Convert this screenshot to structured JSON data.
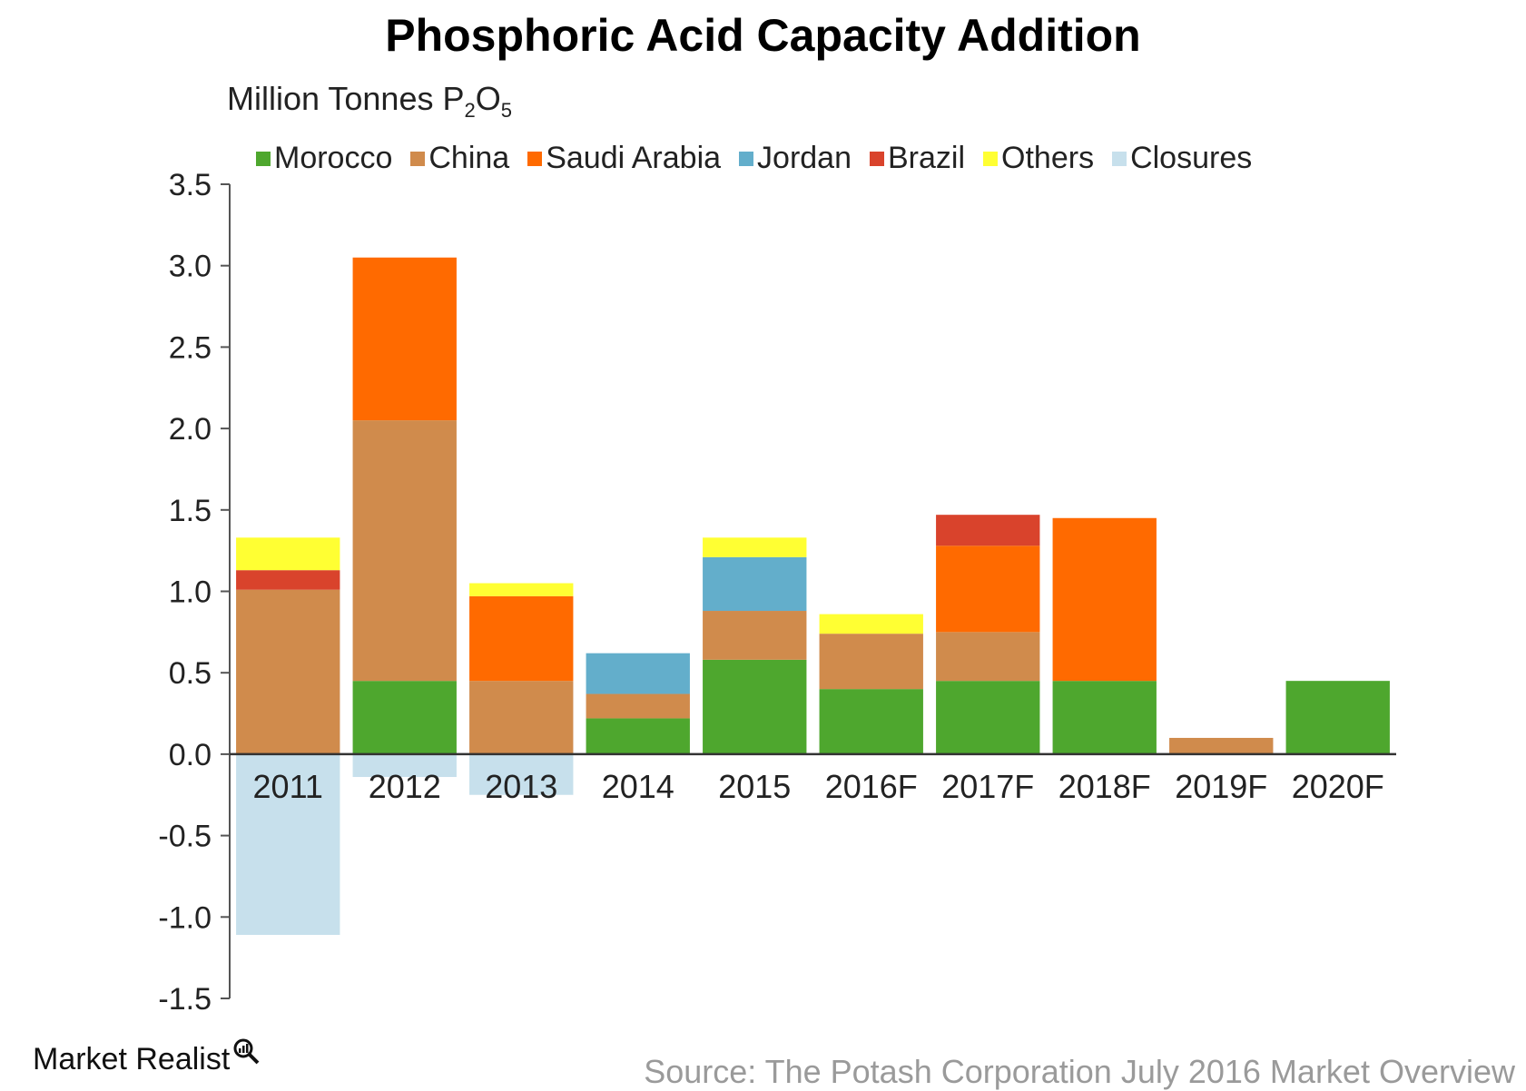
{
  "chart_data": {
    "type": "bar",
    "stacked": true,
    "title": "Phosphoric Acid Capacity Addition",
    "ylabel_main": "Million Tonnes P",
    "ylabel_sub1": "2",
    "ylabel_mid": "O",
    "ylabel_sub2": "5",
    "categories": [
      "2011",
      "2012",
      "2013",
      "2014",
      "2015",
      "2016F",
      "2017F",
      "2018F",
      "2019F",
      "2020F"
    ],
    "ylim": [
      -1.5,
      3.5
    ],
    "yticks": [
      "3.5",
      "3.0",
      "2.5",
      "2.0",
      "1.5",
      "1.0",
      "0.5",
      "0.0",
      "-0.5",
      "-1.0",
      "-1.5"
    ],
    "grid": false,
    "legend_position": "top",
    "series": [
      {
        "name": "Morocco",
        "color": "#4ea72e",
        "values": [
          0,
          0.45,
          0,
          0.22,
          0.58,
          0.4,
          0.45,
          0.45,
          0,
          0.45
        ]
      },
      {
        "name": "China",
        "color": "#d08b4c",
        "values": [
          1.01,
          1.6,
          0.45,
          0.15,
          0.3,
          0.34,
          0.3,
          0,
          0.1,
          0
        ]
      },
      {
        "name": "Saudi Arabia",
        "color": "#ff6a00",
        "values": [
          0,
          1.0,
          0.52,
          0,
          0,
          0,
          0.53,
          1.0,
          0,
          0
        ]
      },
      {
        "name": "Jordan",
        "color": "#63aecb",
        "values": [
          0,
          0,
          0,
          0.25,
          0.33,
          0,
          0,
          0,
          0,
          0
        ]
      },
      {
        "name": "Brazil",
        "color": "#d9432c",
        "values": [
          0.12,
          0,
          0,
          0,
          0,
          0,
          0.19,
          0,
          0,
          0
        ]
      },
      {
        "name": "Others",
        "color": "#ffff33",
        "values": [
          0.2,
          0,
          0.08,
          0,
          0.12,
          0.12,
          0,
          0,
          0,
          0
        ]
      },
      {
        "name": "Closures",
        "color": "#c7e0ec",
        "values": [
          -1.11,
          -0.14,
          -0.25,
          0,
          0,
          0,
          0,
          0,
          0,
          0
        ]
      }
    ]
  },
  "branding": {
    "logo_text": "Market Realist",
    "source": "Source: The Potash Corporation July 2016 Market Overview"
  }
}
